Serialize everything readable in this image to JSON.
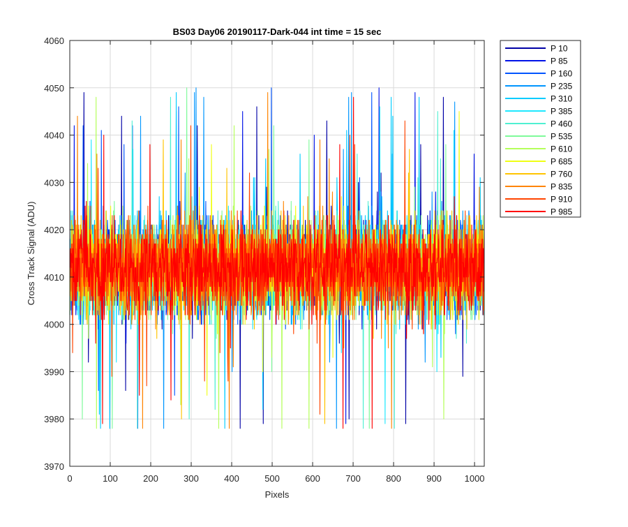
{
  "chart_data": {
    "type": "line",
    "title": "BS03 Day06 20190117-Dark-044 int time = 15 sec",
    "xlabel": "Pixels",
    "ylabel": "Cross Track Signal (ADU)",
    "xlim": [
      0,
      1024
    ],
    "ylim": [
      3970,
      4060
    ],
    "xticks": [
      0,
      100,
      200,
      300,
      400,
      500,
      600,
      700,
      800,
      900,
      1000
    ],
    "yticks": [
      3970,
      3980,
      3990,
      4000,
      4010,
      4020,
      4030,
      4040,
      4050,
      4060
    ],
    "grid": true,
    "legend_position": "outside-top-right",
    "x_count": 1024,
    "noise": {
      "mean": 4012,
      "typical_range": [
        3998,
        4027
      ],
      "extreme_range": [
        3978,
        4051
      ]
    },
    "series": [
      {
        "name": "P 10",
        "color": "#0000a6"
      },
      {
        "name": "P 85",
        "color": "#0012e8"
      },
      {
        "name": "P 160",
        "color": "#0054ff"
      },
      {
        "name": "P 235",
        "color": "#0096ff"
      },
      {
        "name": "P 310",
        "color": "#00ccff"
      },
      {
        "name": "P 385",
        "color": "#1ee8ff"
      },
      {
        "name": "P 460",
        "color": "#4ff0d2"
      },
      {
        "name": "P 535",
        "color": "#7efa9a"
      },
      {
        "name": "P 610",
        "color": "#b4ff5a"
      },
      {
        "name": "P 685",
        "color": "#f0ff14"
      },
      {
        "name": "P 760",
        "color": "#ffc400"
      },
      {
        "name": "P 835",
        "color": "#ff8400"
      },
      {
        "name": "P 910",
        "color": "#ff4400"
      },
      {
        "name": "P 985",
        "color": "#ff0000"
      }
    ]
  }
}
